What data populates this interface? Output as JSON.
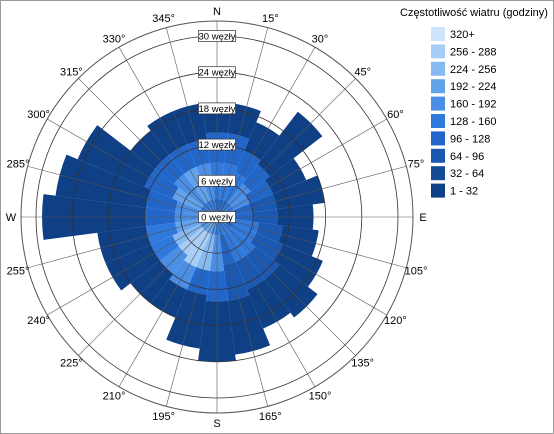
{
  "chart_data": {
    "type": "wind-rose",
    "title": "",
    "compass": {
      "N": "N",
      "S": "S",
      "E": "E",
      "W": "W"
    },
    "angle_labels": [
      "15°",
      "30°",
      "45°",
      "60°",
      "75°",
      "105°",
      "120°",
      "135°",
      "150°",
      "165°",
      "195°",
      "210°",
      "225°",
      "240°",
      "255°",
      "285°",
      "300°",
      "315°",
      "330°",
      "345°"
    ],
    "angle_values": [
      15,
      30,
      45,
      60,
      75,
      105,
      120,
      135,
      150,
      165,
      195,
      210,
      225,
      240,
      255,
      285,
      300,
      315,
      330,
      345
    ],
    "ring_labels": [
      "0 węzły",
      "6 węzły",
      "12 węzły",
      "18 węzły",
      "24 węzły",
      "30 węzły"
    ],
    "ring_values": [
      0,
      6,
      12,
      18,
      24,
      30
    ],
    "speed_max": 30,
    "sector_width_deg": 15,
    "legend": {
      "title": "Częstotliwość wiatru (godziny)",
      "entries": [
        {
          "label": "320+",
          "color": "#cfe3fb"
        },
        {
          "label": "256 - 288",
          "color": "#a8cdf6"
        },
        {
          "label": "224 - 256",
          "color": "#86b9f2"
        },
        {
          "label": "192 - 224",
          "color": "#63a3ec"
        },
        {
          "label": "160 - 192",
          "color": "#4a8fe5"
        },
        {
          "label": "128 - 160",
          "color": "#2f78dc"
        },
        {
          "label": "96 - 128",
          "color": "#2166c8"
        },
        {
          "label": "64 - 96",
          "color": "#1a58b2"
        },
        {
          "label": "32 - 64",
          "color": "#154a96"
        },
        {
          "label": "1 - 32",
          "color": "#0f3f84"
        }
      ]
    },
    "sectors": [
      {
        "dir": 0,
        "bins": [
          [
            3,
            "#2166c8"
          ],
          [
            9,
            "#2f78dc"
          ],
          [
            14,
            "#2166c8"
          ],
          [
            19,
            "#0f3f84"
          ]
        ]
      },
      {
        "dir": 15,
        "bins": [
          [
            3,
            "#2166c8"
          ],
          [
            9,
            "#2f78dc"
          ],
          [
            14,
            "#2166c8"
          ],
          [
            19,
            "#0f3f84"
          ]
        ]
      },
      {
        "dir": 30,
        "bins": [
          [
            3,
            "#2166c8"
          ],
          [
            8,
            "#2f78dc"
          ],
          [
            12,
            "#2166c8"
          ],
          [
            17,
            "#0f3f84"
          ]
        ]
      },
      {
        "dir": 45,
        "bins": [
          [
            3,
            "#2f78dc"
          ],
          [
            7,
            "#4a8fe5"
          ],
          [
            11,
            "#2166c8"
          ],
          [
            22,
            "#0f3f84"
          ]
        ]
      },
      {
        "dir": 60,
        "bins": [
          [
            3,
            "#2f78dc"
          ],
          [
            6,
            "#4a8fe5"
          ],
          [
            10,
            "#2166c8"
          ],
          [
            16,
            "#0f3f84"
          ]
        ]
      },
      {
        "dir": 75,
        "bins": [
          [
            3,
            "#2f78dc"
          ],
          [
            6,
            "#2166c8"
          ],
          [
            10,
            "#1a58b2"
          ],
          [
            18,
            "#0f3f84"
          ]
        ]
      },
      {
        "dir": 90,
        "bins": [
          [
            3,
            "#2166c8"
          ],
          [
            6,
            "#2166c8"
          ],
          [
            10,
            "#1a58b2"
          ],
          [
            16,
            "#0f3f84"
          ]
        ]
      },
      {
        "dir": 105,
        "bins": [
          [
            3,
            "#2166c8"
          ],
          [
            7,
            "#2f78dc"
          ],
          [
            11,
            "#1a58b2"
          ],
          [
            17,
            "#0f3f84"
          ]
        ]
      },
      {
        "dir": 120,
        "bins": [
          [
            3,
            "#2166c8"
          ],
          [
            7,
            "#2f78dc"
          ],
          [
            12,
            "#1a58b2"
          ],
          [
            19,
            "#0f3f84"
          ]
        ]
      },
      {
        "dir": 135,
        "bins": [
          [
            3,
            "#2f78dc"
          ],
          [
            8,
            "#2f78dc"
          ],
          [
            13,
            "#1a58b2"
          ],
          [
            21,
            "#0f3f84"
          ]
        ]
      },
      {
        "dir": 150,
        "bins": [
          [
            3,
            "#2f78dc"
          ],
          [
            8,
            "#2f78dc"
          ],
          [
            13,
            "#1a58b2"
          ],
          [
            20,
            "#0f3f84"
          ]
        ]
      },
      {
        "dir": 165,
        "bins": [
          [
            3,
            "#2f78dc"
          ],
          [
            8,
            "#2166c8"
          ],
          [
            14,
            "#1a58b2"
          ],
          [
            23,
            "#0f3f84"
          ]
        ]
      },
      {
        "dir": 180,
        "bins": [
          [
            3,
            "#2f78dc"
          ],
          [
            9,
            "#4a8fe5"
          ],
          [
            14,
            "#2166c8"
          ],
          [
            24,
            "#0f3f84"
          ]
        ]
      },
      {
        "dir": 195,
        "bins": [
          [
            3,
            "#4a8fe5"
          ],
          [
            9,
            "#86b9f2"
          ],
          [
            13,
            "#2166c8"
          ],
          [
            22,
            "#0f3f84"
          ]
        ]
      },
      {
        "dir": 210,
        "bins": [
          [
            3,
            "#63a3ec"
          ],
          [
            9,
            "#a8cdf6"
          ],
          [
            13,
            "#4a8fe5"
          ],
          [
            18,
            "#0f3f84"
          ]
        ]
      },
      {
        "dir": 225,
        "bins": [
          [
            3,
            "#63a3ec"
          ],
          [
            8,
            "#a8cdf6"
          ],
          [
            12,
            "#4a8fe5"
          ],
          [
            18,
            "#0f3f84"
          ]
        ]
      },
      {
        "dir": 240,
        "bins": [
          [
            3,
            "#4a8fe5"
          ],
          [
            8,
            "#86b9f2"
          ],
          [
            12,
            "#2f78dc"
          ],
          [
            20,
            "#0f3f84"
          ]
        ]
      },
      {
        "dir": 255,
        "bins": [
          [
            3,
            "#4a8fe5"
          ],
          [
            7,
            "#63a3ec"
          ],
          [
            12,
            "#2f78dc"
          ],
          [
            20,
            "#0f3f84"
          ]
        ]
      },
      {
        "dir": 270,
        "bins": [
          [
            3,
            "#2f78dc"
          ],
          [
            7,
            "#4a8fe5"
          ],
          [
            12,
            "#2166c8"
          ],
          [
            29,
            "#0f3f84"
          ]
        ]
      },
      {
        "dir": 285,
        "bins": [
          [
            3,
            "#2f78dc"
          ],
          [
            7,
            "#4a8fe5"
          ],
          [
            12,
            "#2166c8"
          ],
          [
            27,
            "#0f3f84"
          ]
        ]
      },
      {
        "dir": 300,
        "bins": [
          [
            3,
            "#2f78dc"
          ],
          [
            8,
            "#63a3ec"
          ],
          [
            13,
            "#2166c8"
          ],
          [
            25,
            "#0f3f84"
          ]
        ]
      },
      {
        "dir": 315,
        "bins": [
          [
            3,
            "#2f78dc"
          ],
          [
            9,
            "#4a8fe5"
          ],
          [
            13,
            "#2166c8"
          ],
          [
            18,
            "#0f3f84"
          ]
        ]
      },
      {
        "dir": 330,
        "bins": [
          [
            3,
            "#2f78dc"
          ],
          [
            9,
            "#63a3ec"
          ],
          [
            13,
            "#2166c8"
          ],
          [
            19,
            "#0f3f84"
          ]
        ]
      },
      {
        "dir": 345,
        "bins": [
          [
            3,
            "#2f78dc"
          ],
          [
            9,
            "#4a8fe5"
          ],
          [
            13,
            "#2166c8"
          ],
          [
            19,
            "#0f3f84"
          ]
        ]
      }
    ]
  }
}
